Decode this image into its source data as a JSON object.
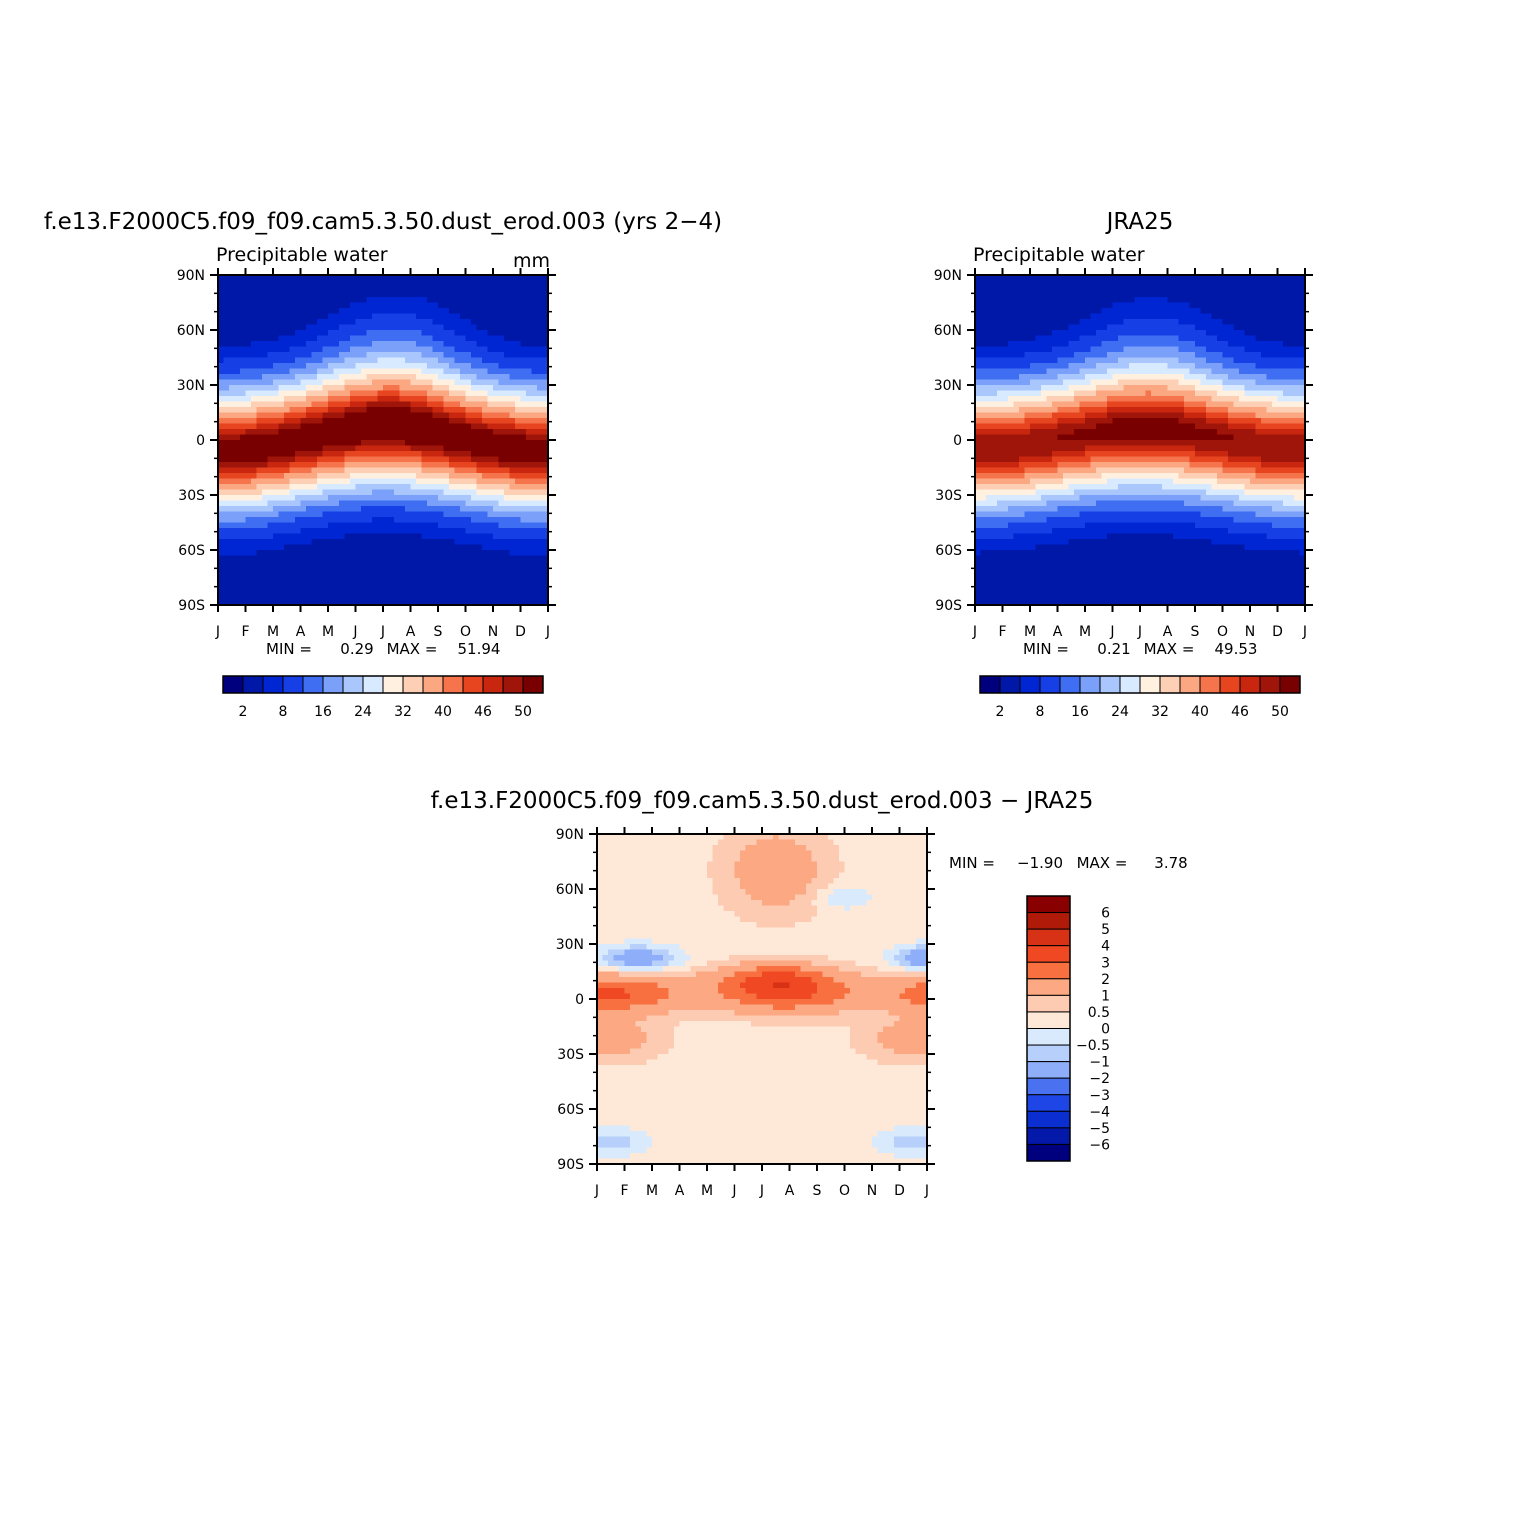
{
  "colors": {
    "abs_scale": [
      "#00007e",
      "#0018a8",
      "#0026d4",
      "#1640e6",
      "#3f6ef2",
      "#7aa0fa",
      "#a9c6fd",
      "#d8eaff",
      "#fff0df",
      "#fdd0b6",
      "#fba782",
      "#f6744c",
      "#e64520",
      "#c92610",
      "#a0150a",
      "#780000"
    ],
    "diff_scale": [
      "#880000",
      "#b01a08",
      "#d83216",
      "#f04822",
      "#f87040",
      "#fca882",
      "#fdcab2",
      "#fee8d8",
      "#daeafd",
      "#b6cffb",
      "#8eaefa",
      "#4a72f0",
      "#1e46e6",
      "#0a2ed0",
      "#0418aa",
      "#00007e"
    ]
  },
  "chart_data": [
    {
      "type": "heatmap",
      "title": "f.e13.F2000C5.f09_f09.cam5.3.50.dust_erod.003 (yrs 2−4)",
      "subtitle": "Precipitable water",
      "units": "mm",
      "x_tick_labels": [
        "J",
        "F",
        "M",
        "A",
        "M",
        "J",
        "J",
        "A",
        "S",
        "O",
        "N",
        "D",
        "J"
      ],
      "y_tick_labels": [
        "90N",
        "60N",
        "30N",
        "0",
        "30S",
        "60S",
        "90S"
      ],
      "stats": {
        "min_label": "MIN =",
        "min": "0.29",
        "max_label": "MAX =",
        "max": "51.94"
      },
      "colorbar_labels": [
        "2",
        "8",
        "16",
        "24",
        "32",
        "40",
        "46",
        "50"
      ],
      "lat_range": [
        -90,
        90
      ],
      "month_range": [
        1,
        13
      ]
    },
    {
      "type": "heatmap",
      "title": "JRA25",
      "subtitle": "Precipitable water",
      "units": "",
      "x_tick_labels": [
        "J",
        "F",
        "M",
        "A",
        "M",
        "J",
        "J",
        "A",
        "S",
        "O",
        "N",
        "D",
        "J"
      ],
      "y_tick_labels": [
        "90N",
        "60N",
        "30N",
        "0",
        "30S",
        "60S",
        "90S"
      ],
      "stats": {
        "min_label": "MIN =",
        "min": "0.21",
        "max_label": "MAX =",
        "max": "49.53"
      },
      "colorbar_labels": [
        "2",
        "8",
        "16",
        "24",
        "32",
        "40",
        "46",
        "50"
      ],
      "lat_range": [
        -90,
        90
      ],
      "month_range": [
        1,
        13
      ]
    },
    {
      "type": "heatmap",
      "title": "f.e13.F2000C5.f09_f09.cam5.3.50.dust_erod.003 − JRA25",
      "x_tick_labels": [
        "J",
        "F",
        "M",
        "A",
        "M",
        "J",
        "J",
        "A",
        "S",
        "O",
        "N",
        "D",
        "J"
      ],
      "y_tick_labels": [
        "90N",
        "60N",
        "30N",
        "0",
        "30S",
        "60S",
        "90S"
      ],
      "stats": {
        "min_label": "MIN =",
        "min": "−1.90",
        "max_label": "MAX =",
        "max": "3.78"
      },
      "colorbar_labels": [
        "6",
        "5",
        "4",
        "3",
        "2",
        "1",
        "0.5",
        "0",
        "−0.5",
        "−1",
        "−2",
        "−3",
        "−4",
        "−5",
        "−6"
      ],
      "lat_range": [
        -90,
        90
      ],
      "month_range": [
        1,
        13
      ]
    }
  ]
}
